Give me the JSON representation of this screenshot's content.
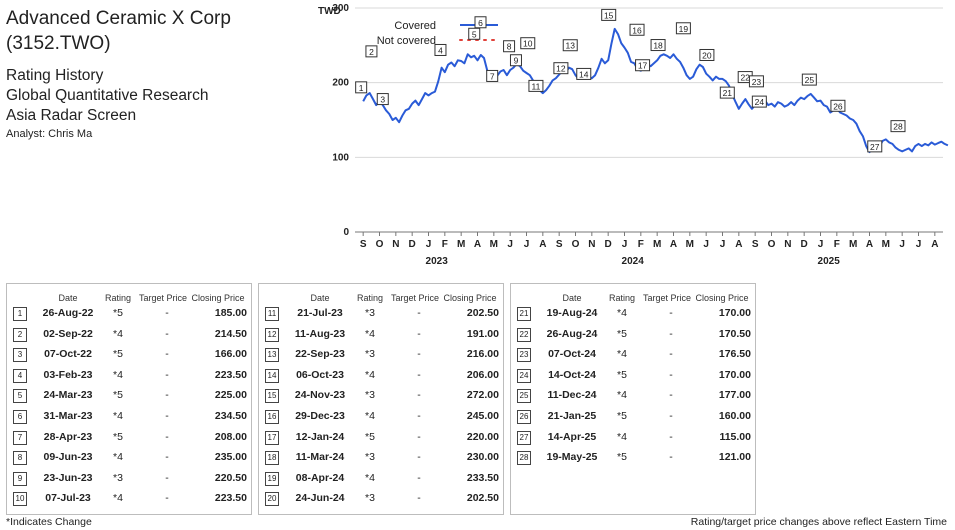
{
  "header": {
    "company": "Advanced Ceramic X Corp",
    "ticker": "(3152.TWO)",
    "line1": "Rating History",
    "line2": "Global Quantitative Research",
    "line3": "Asia Radar Screen",
    "analyst": "Analyst: Chris Ma"
  },
  "table_headers": {
    "date": "Date",
    "rating": "Rating",
    "target": "Target Price",
    "close": "Closing Price"
  },
  "footer": {
    "left": "*Indicates Change",
    "right": "Rating/target price changes above reflect Eastern Time"
  },
  "colors": {
    "covered": "#2a5bd7",
    "not_covered": "#e0413a",
    "grid": "#d9d9d9",
    "text": "#222222"
  },
  "chart_data": {
    "type": "line",
    "ylabel": "TWD",
    "ylim": [
      0,
      300
    ],
    "yticks": [
      0,
      100,
      200,
      300
    ],
    "x_months": [
      "S",
      "O",
      "N",
      "D",
      "J",
      "F",
      "M",
      "A",
      "M",
      "J",
      "J",
      "A",
      "S",
      "O",
      "N",
      "D",
      "J",
      "F",
      "M",
      "A",
      "M",
      "J",
      "J",
      "A",
      "S",
      "O",
      "N",
      "D",
      "J",
      "F",
      "M",
      "A",
      "M",
      "J",
      "J",
      "A"
    ],
    "x_years": [
      {
        "label": "2023",
        "month_index": 4
      },
      {
        "label": "2024",
        "month_index": 16
      },
      {
        "label": "2025",
        "month_index": 28
      }
    ],
    "legend": [
      {
        "name": "Covered",
        "style": "solid"
      },
      {
        "name": "Not covered",
        "style": "dotted"
      }
    ],
    "legend_position": "top-left",
    "series": [
      {
        "name": "Covered",
        "points": [
          [
            0,
            175
          ],
          [
            0.2,
            183
          ],
          [
            0.4,
            186
          ],
          [
            0.6,
            178
          ],
          [
            0.8,
            170
          ],
          [
            1.0,
            176
          ],
          [
            1.2,
            170
          ],
          [
            1.4,
            163
          ],
          [
            1.6,
            158
          ],
          [
            1.8,
            150
          ],
          [
            2.0,
            153
          ],
          [
            2.2,
            147
          ],
          [
            2.4,
            156
          ],
          [
            2.6,
            163
          ],
          [
            2.8,
            165
          ],
          [
            3.0,
            172
          ],
          [
            3.2,
            176
          ],
          [
            3.4,
            170
          ],
          [
            3.6,
            178
          ],
          [
            3.8,
            186
          ],
          [
            4.0,
            183
          ],
          [
            4.2,
            186
          ],
          [
            4.4,
            188
          ],
          [
            4.6,
            202
          ],
          [
            4.8,
            220
          ],
          [
            5.0,
            214
          ],
          [
            5.2,
            224
          ],
          [
            5.4,
            227
          ],
          [
            5.6,
            222
          ],
          [
            5.8,
            230
          ],
          [
            6.0,
            229
          ],
          [
            6.2,
            226
          ],
          [
            6.4,
            238
          ],
          [
            6.6,
            234
          ],
          [
            6.8,
            236
          ],
          [
            7.0,
            230
          ],
          [
            7.2,
            237
          ],
          [
            7.4,
            233
          ],
          [
            7.6,
            216
          ],
          [
            7.8,
            210
          ],
          [
            8.0,
            206
          ],
          [
            8.2,
            209
          ],
          [
            8.4,
            215
          ],
          [
            8.6,
            217
          ],
          [
            8.8,
            210
          ],
          [
            9.0,
            217
          ],
          [
            9.2,
            220
          ],
          [
            9.4,
            225
          ],
          [
            9.6,
            222
          ],
          [
            9.8,
            216
          ],
          [
            10.0,
            213
          ],
          [
            10.2,
            210
          ],
          [
            10.4,
            203
          ],
          [
            10.6,
            193
          ],
          [
            10.8,
            190
          ],
          [
            11.0,
            186
          ],
          [
            11.2,
            190
          ],
          [
            11.4,
            196
          ],
          [
            11.6,
            203
          ],
          [
            11.8,
            206
          ],
          [
            12.0,
            211
          ],
          [
            12.2,
            216
          ],
          [
            12.4,
            214
          ],
          [
            12.6,
            220
          ],
          [
            12.8,
            218
          ],
          [
            13.0,
            210
          ],
          [
            13.2,
            205
          ],
          [
            13.4,
            208
          ],
          [
            13.6,
            212
          ],
          [
            13.8,
            208
          ],
          [
            14.0,
            206
          ],
          [
            14.2,
            210
          ],
          [
            14.4,
            220
          ],
          [
            14.6,
            232
          ],
          [
            14.8,
            226
          ],
          [
            15.0,
            230
          ],
          [
            15.2,
            252
          ],
          [
            15.4,
            272
          ],
          [
            15.6,
            265
          ],
          [
            15.8,
            253
          ],
          [
            16.0,
            247
          ],
          [
            16.2,
            240
          ],
          [
            16.4,
            228
          ],
          [
            16.6,
            226
          ],
          [
            16.8,
            218
          ],
          [
            17.0,
            216
          ],
          [
            17.2,
            220
          ],
          [
            17.4,
            225
          ],
          [
            17.6,
            222
          ],
          [
            17.8,
            226
          ],
          [
            18.0,
            230
          ],
          [
            18.2,
            236
          ],
          [
            18.4,
            238
          ],
          [
            18.6,
            236
          ],
          [
            18.8,
            233
          ],
          [
            19.0,
            238
          ],
          [
            19.2,
            232
          ],
          [
            19.4,
            228
          ],
          [
            19.6,
            220
          ],
          [
            19.8,
            210
          ],
          [
            20.0,
            205
          ],
          [
            20.2,
            208
          ],
          [
            20.4,
            218
          ],
          [
            20.6,
            224
          ],
          [
            20.8,
            221
          ],
          [
            21.0,
            212
          ],
          [
            21.2,
            208
          ],
          [
            21.4,
            203
          ],
          [
            21.6,
            208
          ],
          [
            21.8,
            205
          ],
          [
            22.0,
            205
          ],
          [
            22.2,
            202
          ],
          [
            22.4,
            196
          ],
          [
            22.6,
            184
          ],
          [
            22.8,
            174
          ],
          [
            23.0,
            165
          ],
          [
            23.2,
            172
          ],
          [
            23.4,
            178
          ],
          [
            23.6,
            171
          ],
          [
            23.8,
            165
          ],
          [
            24.0,
            170
          ],
          [
            24.2,
            175
          ],
          [
            24.4,
            180
          ],
          [
            24.6,
            176
          ],
          [
            24.8,
            170
          ],
          [
            25.0,
            172
          ],
          [
            25.2,
            168
          ],
          [
            25.4,
            174
          ],
          [
            25.6,
            172
          ],
          [
            25.8,
            168
          ],
          [
            26.0,
            170
          ],
          [
            26.2,
            174
          ],
          [
            26.4,
            170
          ],
          [
            26.6,
            176
          ],
          [
            26.8,
            180
          ],
          [
            27.0,
            178
          ],
          [
            27.2,
            182
          ],
          [
            27.4,
            185
          ],
          [
            27.6,
            180
          ],
          [
            27.8,
            175
          ],
          [
            28.0,
            176
          ],
          [
            28.2,
            170
          ],
          [
            28.4,
            168
          ],
          [
            28.6,
            160
          ],
          [
            28.8,
            163
          ],
          [
            29.0,
            166
          ],
          [
            29.2,
            160
          ],
          [
            29.4,
            158
          ],
          [
            29.6,
            156
          ],
          [
            29.8,
            152
          ],
          [
            30.0,
            150
          ],
          [
            30.2,
            145
          ],
          [
            30.4,
            135
          ],
          [
            30.6,
            128
          ],
          [
            30.8,
            115
          ],
          [
            31.0,
            107
          ],
          [
            31.2,
            112
          ],
          [
            31.4,
            120
          ],
          [
            31.6,
            114
          ],
          [
            31.8,
            122
          ],
          [
            32.0,
            124
          ],
          [
            32.2,
            120
          ],
          [
            32.4,
            118
          ],
          [
            32.6,
            113
          ],
          [
            32.8,
            110
          ],
          [
            33.0,
            108
          ],
          [
            33.2,
            110
          ],
          [
            33.4,
            112
          ],
          [
            33.6,
            108
          ],
          [
            33.8,
            115
          ],
          [
            34.0,
            118
          ],
          [
            34.2,
            115
          ],
          [
            34.4,
            118
          ],
          [
            34.6,
            116
          ],
          [
            34.8,
            120
          ],
          [
            35.0,
            117
          ],
          [
            35.2,
            119
          ],
          [
            35.4,
            121
          ],
          [
            35.6,
            118
          ],
          [
            35.8,
            116
          ]
        ]
      }
    ],
    "annotations": [
      {
        "n": "1",
        "x": 0.0,
        "y": 175
      },
      {
        "n": "2",
        "x": 0.2,
        "y": 183
      },
      {
        "n": "3",
        "x": 1.2,
        "y": 170
      },
      {
        "n": "4",
        "x": 5.1,
        "y": 217
      },
      {
        "n": "5",
        "x": 6.8,
        "y": 236
      },
      {
        "n": "6",
        "x": 7.0,
        "y": 230
      },
      {
        "n": "7",
        "x": 7.9,
        "y": 209
      },
      {
        "n": "8",
        "x": 9.3,
        "y": 222
      },
      {
        "n": "9",
        "x": 9.6,
        "y": 222
      },
      {
        "n": "10",
        "x": 10.2,
        "y": 210
      },
      {
        "n": "11",
        "x": 10.7,
        "y": 193
      },
      {
        "n": "12",
        "x": 11.8,
        "y": 206
      },
      {
        "n": "13",
        "x": 12.8,
        "y": 218
      },
      {
        "n": "14",
        "x": 13.2,
        "y": 205
      },
      {
        "n": "15",
        "x": 15.4,
        "y": 272
      },
      {
        "n": "16",
        "x": 16.4,
        "y": 228
      },
      {
        "n": "17",
        "x": 16.8,
        "y": 218
      },
      {
        "n": "18",
        "x": 18.3,
        "y": 237
      },
      {
        "n": "19",
        "x": 19.3,
        "y": 230
      },
      {
        "n": "20",
        "x": 20.8,
        "y": 221
      },
      {
        "n": "21",
        "x": 22.6,
        "y": 184
      },
      {
        "n": "22",
        "x": 22.9,
        "y": 170
      },
      {
        "n": "23",
        "x": 24.2,
        "y": 175
      },
      {
        "n": "24",
        "x": 24.5,
        "y": 180
      },
      {
        "n": "25",
        "x": 27.5,
        "y": 180
      },
      {
        "n": "26",
        "x": 28.7,
        "y": 161
      },
      {
        "n": "27",
        "x": 31.2,
        "y": 112
      },
      {
        "n": "28",
        "x": 32.5,
        "y": 115
      }
    ]
  },
  "tables": [
    {
      "rows": [
        {
          "n": "1",
          "date": "26-Aug-22",
          "rating": "*5",
          "target": "-",
          "close": "185.00"
        },
        {
          "n": "2",
          "date": "02-Sep-22",
          "rating": "*4",
          "target": "-",
          "close": "214.50"
        },
        {
          "n": "3",
          "date": "07-Oct-22",
          "rating": "*5",
          "target": "-",
          "close": "166.00"
        },
        {
          "n": "4",
          "date": "03-Feb-23",
          "rating": "*4",
          "target": "-",
          "close": "223.50"
        },
        {
          "n": "5",
          "date": "24-Mar-23",
          "rating": "*5",
          "target": "-",
          "close": "225.00"
        },
        {
          "n": "6",
          "date": "31-Mar-23",
          "rating": "*4",
          "target": "-",
          "close": "234.50"
        },
        {
          "n": "7",
          "date": "28-Apr-23",
          "rating": "*5",
          "target": "-",
          "close": "208.00"
        },
        {
          "n": "8",
          "date": "09-Jun-23",
          "rating": "*4",
          "target": "-",
          "close": "235.00"
        },
        {
          "n": "9",
          "date": "23-Jun-23",
          "rating": "*3",
          "target": "-",
          "close": "220.50"
        },
        {
          "n": "10",
          "date": "07-Jul-23",
          "rating": "*4",
          "target": "-",
          "close": "223.50"
        }
      ]
    },
    {
      "rows": [
        {
          "n": "11",
          "date": "21-Jul-23",
          "rating": "*3",
          "target": "-",
          "close": "202.50"
        },
        {
          "n": "12",
          "date": "11-Aug-23",
          "rating": "*4",
          "target": "-",
          "close": "191.00"
        },
        {
          "n": "13",
          "date": "22-Sep-23",
          "rating": "*3",
          "target": "-",
          "close": "216.00"
        },
        {
          "n": "14",
          "date": "06-Oct-23",
          "rating": "*4",
          "target": "-",
          "close": "206.00"
        },
        {
          "n": "15",
          "date": "24-Nov-23",
          "rating": "*3",
          "target": "-",
          "close": "272.00"
        },
        {
          "n": "16",
          "date": "29-Dec-23",
          "rating": "*4",
          "target": "-",
          "close": "245.00"
        },
        {
          "n": "17",
          "date": "12-Jan-24",
          "rating": "*5",
          "target": "-",
          "close": "220.00"
        },
        {
          "n": "18",
          "date": "11-Mar-24",
          "rating": "*3",
          "target": "-",
          "close": "230.00"
        },
        {
          "n": "19",
          "date": "08-Apr-24",
          "rating": "*4",
          "target": "-",
          "close": "233.50"
        },
        {
          "n": "20",
          "date": "24-Jun-24",
          "rating": "*3",
          "target": "-",
          "close": "202.50"
        }
      ]
    },
    {
      "rows": [
        {
          "n": "21",
          "date": "19-Aug-24",
          "rating": "*4",
          "target": "-",
          "close": "170.00"
        },
        {
          "n": "22",
          "date": "26-Aug-24",
          "rating": "*5",
          "target": "-",
          "close": "170.50"
        },
        {
          "n": "23",
          "date": "07-Oct-24",
          "rating": "*4",
          "target": "-",
          "close": "176.50"
        },
        {
          "n": "24",
          "date": "14-Oct-24",
          "rating": "*5",
          "target": "-",
          "close": "170.00"
        },
        {
          "n": "25",
          "date": "11-Dec-24",
          "rating": "*4",
          "target": "-",
          "close": "177.00"
        },
        {
          "n": "26",
          "date": "21-Jan-25",
          "rating": "*5",
          "target": "-",
          "close": "160.00"
        },
        {
          "n": "27",
          "date": "14-Apr-25",
          "rating": "*4",
          "target": "-",
          "close": "115.00"
        },
        {
          "n": "28",
          "date": "19-May-25",
          "rating": "*5",
          "target": "-",
          "close": "121.00"
        }
      ]
    }
  ]
}
